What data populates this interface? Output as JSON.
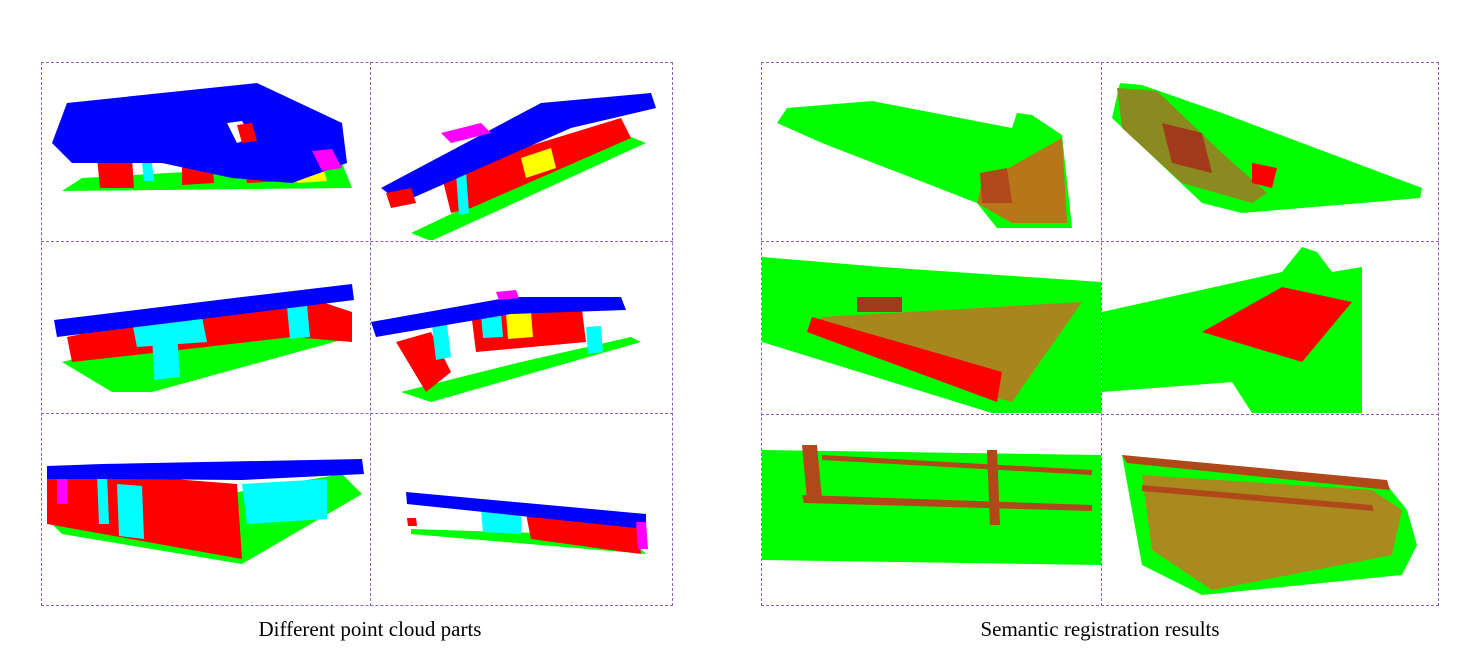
{
  "captions": {
    "left": "Different point cloud parts",
    "right": "Semantic registration results"
  },
  "colors": {
    "roof": "#0000ff",
    "wall": "#ff0000",
    "ground": "#00ff00",
    "column": "#00ffff",
    "window": "#ffff00",
    "other": "#ff00ff",
    "frame": "#8a5fc0"
  }
}
